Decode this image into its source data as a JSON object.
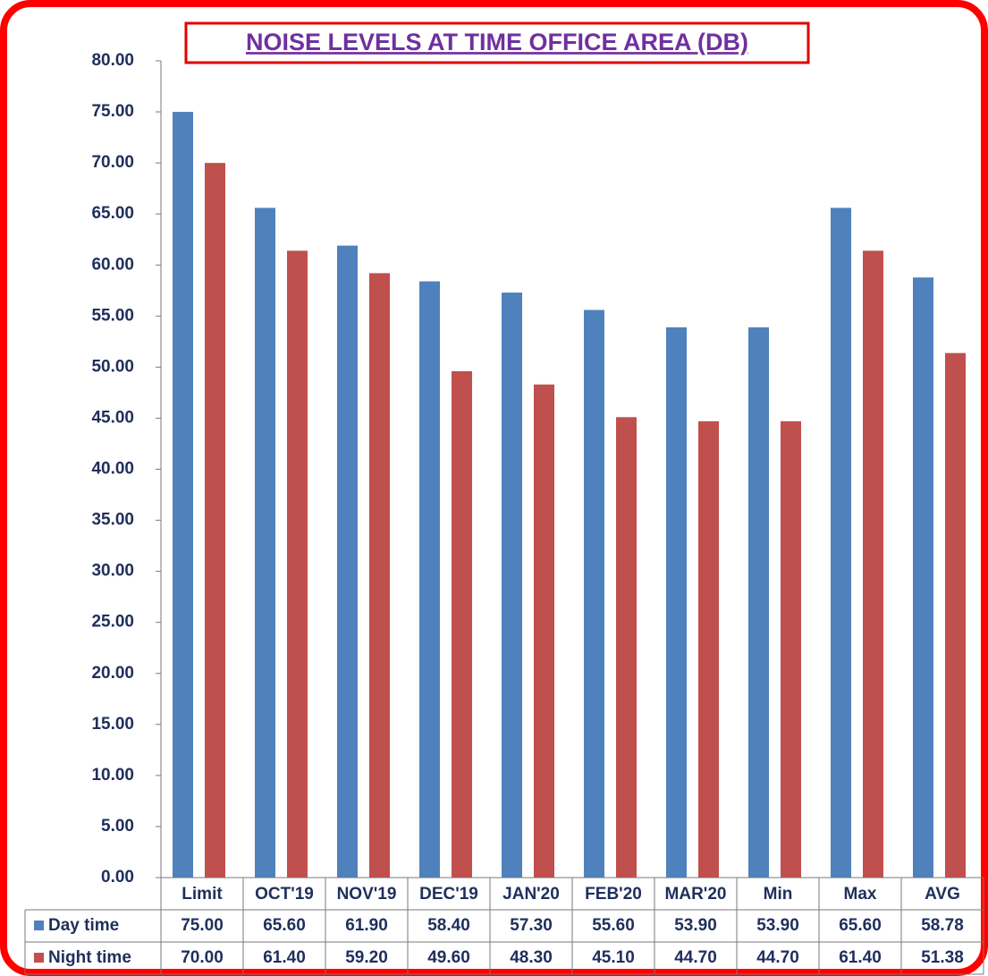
{
  "chart_data": {
    "type": "bar",
    "title": "NOISE LEVELS AT TIME OFFICE AREA (DB)",
    "categories": [
      "Limit",
      "OCT'19",
      "NOV'19",
      "DEC'19",
      "JAN'20",
      "FEB'20",
      "MAR'20",
      "Min",
      "Max",
      "AVG"
    ],
    "series": [
      {
        "name": "Day time",
        "color": "#4f81bd",
        "values": [
          75,
          65.6,
          61.9,
          58.4,
          57.3,
          55.6,
          53.9,
          53.9,
          65.6,
          58.78
        ],
        "value_labels": [
          "75.00",
          "65.60",
          "61.90",
          "58.40",
          "57.30",
          "55.60",
          "53.90",
          "53.90",
          "65.60",
          "58.78"
        ]
      },
      {
        "name": "Night time",
        "color": "#c0504d",
        "values": [
          70,
          61.4,
          59.2,
          49.6,
          48.3,
          45.1,
          44.7,
          44.7,
          61.4,
          51.38
        ],
        "value_labels": [
          "70.00",
          "61.40",
          "59.20",
          "49.60",
          "48.30",
          "45.10",
          "44.70",
          "44.70",
          "61.40",
          "51.38"
        ]
      }
    ],
    "ylim": [
      0,
      80
    ],
    "yticks": [
      {
        "value": 0,
        "label": "0.00"
      },
      {
        "value": 5,
        "label": "5.00"
      },
      {
        "value": 10,
        "label": "10.00"
      },
      {
        "value": 15,
        "label": "15.00"
      },
      {
        "value": 20,
        "label": "20.00"
      },
      {
        "value": 25,
        "label": "25.00"
      },
      {
        "value": 30,
        "label": "30.00"
      },
      {
        "value": 35,
        "label": "35.00"
      },
      {
        "value": 40,
        "label": "40.00"
      },
      {
        "value": 45,
        "label": "45.00"
      },
      {
        "value": 50,
        "label": "50.00"
      },
      {
        "value": 55,
        "label": "55.00"
      },
      {
        "value": 60,
        "label": "60.00"
      },
      {
        "value": 65,
        "label": "65.00"
      },
      {
        "value": 70,
        "label": "70.00"
      },
      {
        "value": 75,
        "label": "75.00"
      },
      {
        "value": 80,
        "label": "80.00"
      }
    ],
    "grid": false
  }
}
